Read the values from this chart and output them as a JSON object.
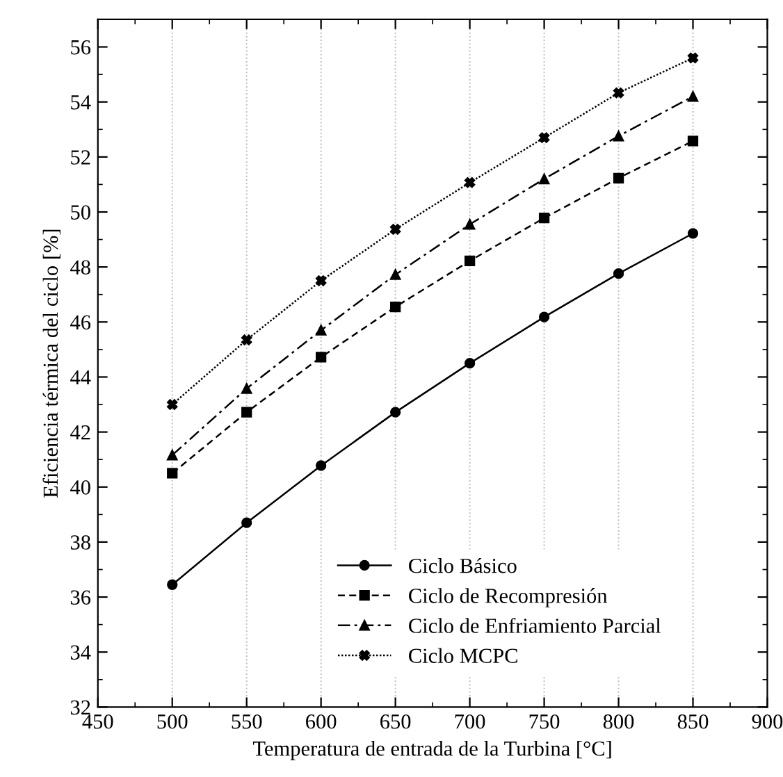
{
  "chart_data": {
    "type": "line",
    "xlabel": "Temperatura de entrada de la Turbina [°C]",
    "ylabel": "Eficiencia térmica del ciclo [%]",
    "x": [
      500,
      550,
      600,
      650,
      700,
      750,
      800,
      850
    ],
    "series": [
      {
        "name": "Ciclo Básico",
        "color": "#000000",
        "marker": "circle",
        "line_style": "solid",
        "values": [
          36.45,
          38.7,
          40.78,
          42.72,
          44.5,
          46.18,
          47.76,
          49.22
        ]
      },
      {
        "name": "Ciclo de Recompresión",
        "color": "#000000",
        "marker": "square",
        "line_style": "dashed",
        "values": [
          40.5,
          42.72,
          44.72,
          46.55,
          48.22,
          49.78,
          51.23,
          52.58
        ]
      },
      {
        "name": "Ciclo de Enfriamiento Parcial",
        "color": "#000000",
        "marker": "triangle",
        "line_style": "dashdot",
        "values": [
          41.16,
          43.58,
          45.7,
          47.72,
          49.55,
          51.2,
          52.76,
          54.2
        ]
      },
      {
        "name": "Ciclo MCPC",
        "color": "#000000",
        "marker": "cross",
        "line_style": "dotted",
        "values": [
          43.0,
          45.35,
          47.5,
          49.37,
          51.07,
          52.7,
          54.33,
          55.6
        ]
      }
    ],
    "xlim": [
      450,
      900
    ],
    "xticks": [
      450,
      500,
      550,
      600,
      650,
      700,
      750,
      800,
      850,
      900
    ],
    "ylim": [
      32,
      57
    ],
    "yticks": [
      32,
      34,
      36,
      38,
      40,
      42,
      44,
      46,
      48,
      50,
      52,
      54,
      56
    ],
    "grid": "x",
    "legend": "bottom"
  }
}
